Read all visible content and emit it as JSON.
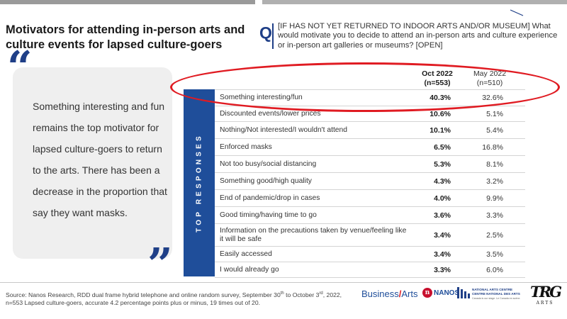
{
  "title": "Motivators for attending in-person arts and culture events for lapsed culture-goers",
  "question_letter": "Q",
  "question": "[IF HAS NOT YET RETURNED TO INDOOR ARTS AND/OR MUSEUM] What would motivate you to decide to attend an in-person arts and culture experience or in-person art galleries or museums? [OPEN]",
  "quote": {
    "open_mark": "“",
    "close_mark": "”",
    "text": "Something interesting and fun remains the top motivator for lapsed culture-goers to return to the arts. There has been a decrease in the proportion that say they want masks."
  },
  "table": {
    "side_label": "TOP RESPONSES",
    "columns": [
      {
        "period": "Oct 2022",
        "n": "(n=553)"
      },
      {
        "period": "May 2022",
        "n": "(n=510)"
      }
    ],
    "rows": [
      {
        "label": "Something interesting/fun",
        "oct": "40.3%",
        "may": "32.6%"
      },
      {
        "label": "Discounted events/lower prices",
        "oct": "10.6%",
        "may": "5.1%"
      },
      {
        "label": "Nothing/Not interested/I wouldn't attend",
        "oct": "10.1%",
        "may": "5.4%"
      },
      {
        "label": "Enforced masks",
        "oct": "6.5%",
        "may": "16.8%"
      },
      {
        "label": "Not too busy/social distancing",
        "oct": "5.3%",
        "may": "8.1%"
      },
      {
        "label": "Something good/high quality",
        "oct": "4.3%",
        "may": "3.2%"
      },
      {
        "label": "End of pandemic/drop in cases",
        "oct": "4.0%",
        "may": "9.9%"
      },
      {
        "label": "Good timing/having time to go",
        "oct": "3.6%",
        "may": "3.3%"
      },
      {
        "label": "Information on the precautions taken by venue/feeling like it will be safe",
        "oct": "3.4%",
        "may": "2.5%"
      },
      {
        "label": "Easily accessed",
        "oct": "3.4%",
        "may": "3.5%"
      },
      {
        "label": "I would already go",
        "oct": "3.3%",
        "may": "6.0%"
      }
    ]
  },
  "source": {
    "prefix": "Source: Nanos Research, RDD dual frame hybrid  telephone and online random survey, September 30",
    "sup1": "th",
    "mid": " to October 3",
    "sup2": "rd",
    "suffix": ", 2022, n=553 Lapsed culture-goers, accurate 4.2 percentage points plus or minus, 19 times out of 20."
  },
  "logos": {
    "business_arts_1": "Business",
    "business_arts_slash": "/",
    "business_arts_2": "Arts",
    "nanos_mark": "n",
    "nanos": "NANOS",
    "nac_line1": "NATIONAL ARTS CENTRE",
    "nac_line2": "CENTRE NATIONAL DES ARTS",
    "nac_tagline": "Canada is our stage. Le Canada en scène.",
    "trg": "TRG",
    "trg_sub": "ARTS"
  },
  "colors": {
    "accent_blue": "#1f4e9a",
    "highlight_red": "#e01b22",
    "quote_bg": "#efefef"
  }
}
